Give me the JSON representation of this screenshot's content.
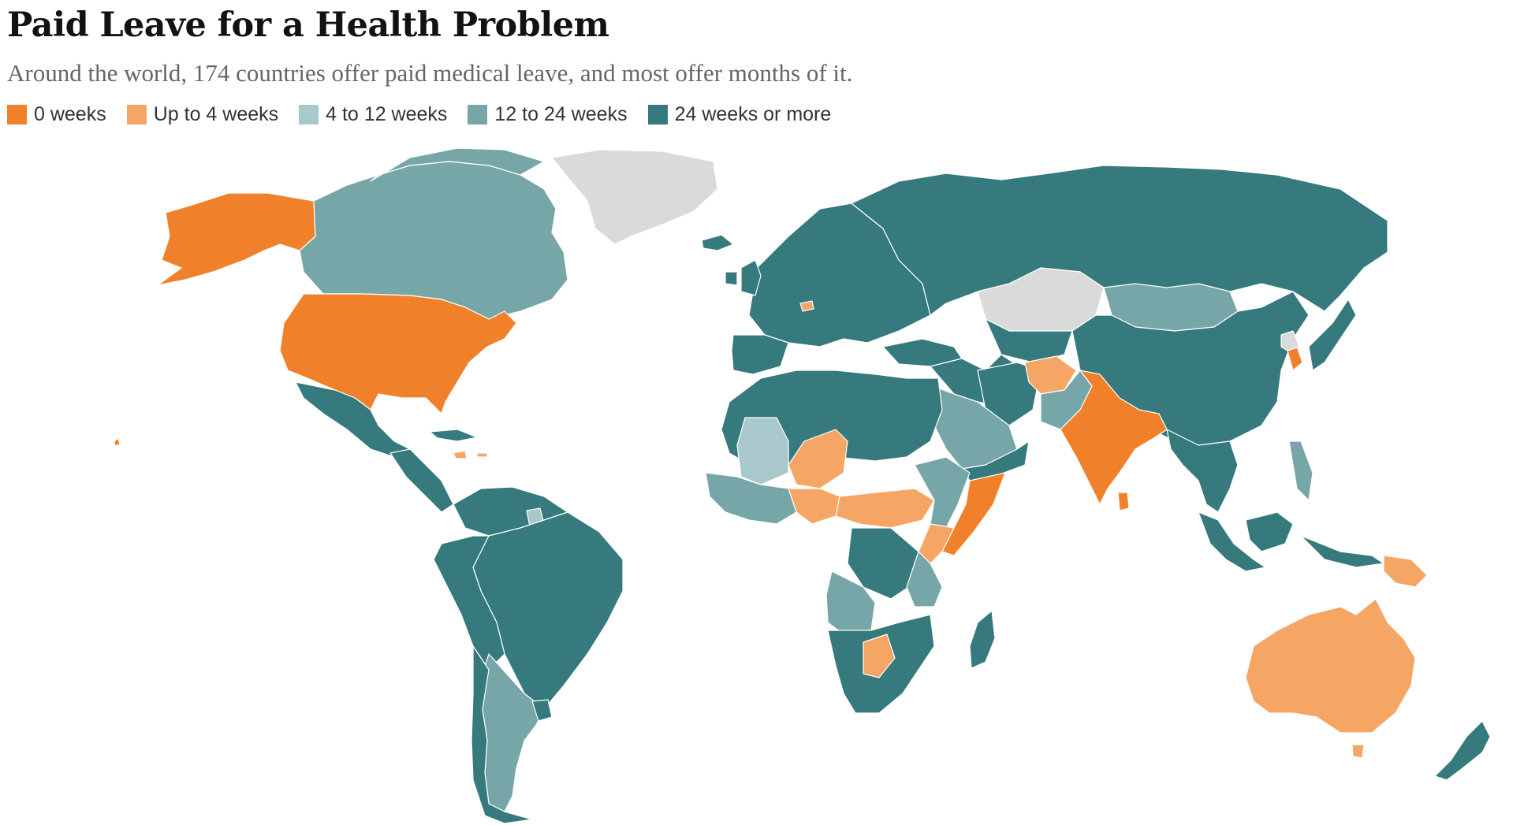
{
  "title": "Paid Leave for a Health Problem",
  "subtitle": "Around the world, 174 countries offer paid medical leave, and most offer months of it.",
  "legend": [
    {
      "label": "0 weeks",
      "color": "#f0812a"
    },
    {
      "label": "Up to 4 weeks",
      "color": "#f5a564"
    },
    {
      "label": "4 to 12 weeks",
      "color": "#a9c8cb"
    },
    {
      "label": "12 to 24 weeks",
      "color": "#77a6a9"
    },
    {
      "label": "24 weeks or more",
      "color": "#367a7e"
    }
  ],
  "colors": {
    "no_data": "#dadada",
    "border": "#ffffff"
  },
  "regions": [
    {
      "name": "Alaska",
      "category": "0 weeks"
    },
    {
      "name": "Canada",
      "category": "12 to 24 weeks"
    },
    {
      "name": "Greenland",
      "category": "no data"
    },
    {
      "name": "United States",
      "category": "0 weeks"
    },
    {
      "name": "Mexico",
      "category": "24 weeks or more"
    },
    {
      "name": "Brazil",
      "category": "24 weeks or more"
    },
    {
      "name": "Argentina",
      "category": "12 to 24 weeks"
    },
    {
      "name": "Russia",
      "category": "24 weeks or more"
    },
    {
      "name": "Kazakhstan",
      "category": "no data"
    },
    {
      "name": "Mongolia",
      "category": "12 to 24 weeks"
    },
    {
      "name": "China",
      "category": "24 weeks or more"
    },
    {
      "name": "India",
      "category": "0 weeks"
    },
    {
      "name": "Afghanistan",
      "category": "Up to 4 weeks"
    },
    {
      "name": "Saudi Arabia",
      "category": "12 to 24 weeks"
    },
    {
      "name": "Somalia",
      "category": "0 weeks"
    },
    {
      "name": "Australia",
      "category": "Up to 4 weeks"
    },
    {
      "name": "Papua New Guinea",
      "category": "Up to 4 weeks"
    },
    {
      "name": "New Zealand",
      "category": "24 weeks or more"
    },
    {
      "name": "Japan",
      "category": "24 weeks or more"
    },
    {
      "name": "South Korea",
      "category": "0 weeks"
    },
    {
      "name": "Madagascar",
      "category": "24 weeks or more"
    },
    {
      "name": "Angola",
      "category": "12 to 24 weeks"
    },
    {
      "name": "Botswana",
      "category": "Up to 4 weeks"
    },
    {
      "name": "Niger",
      "category": "Up to 4 weeks"
    },
    {
      "name": "Mali",
      "category": "4 to 12 weeks"
    }
  ]
}
